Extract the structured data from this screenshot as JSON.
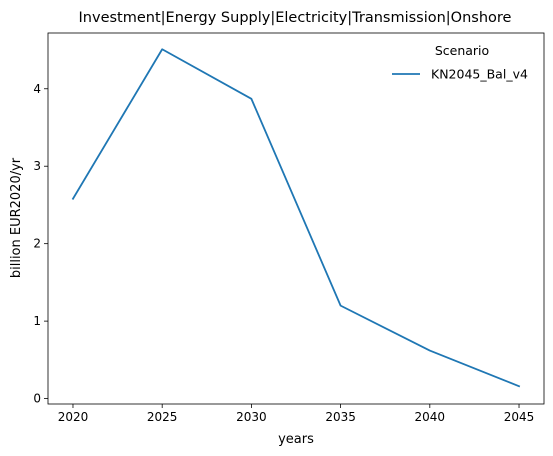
{
  "chart_data": {
    "type": "line",
    "title": "Investment|Energy Supply|Electricity|Transmission|Onshore",
    "xlabel": "years",
    "ylabel": "billion EUR2020/yr",
    "x": [
      2020,
      2025,
      2030,
      2035,
      2040,
      2045
    ],
    "xlim": [
      2018.6,
      2046.4
    ],
    "ylim": [
      -0.07,
      4.72
    ],
    "xticks": [
      2020,
      2025,
      2030,
      2035,
      2040,
      2045
    ],
    "yticks": [
      0,
      1,
      2,
      3,
      4
    ],
    "grid": false,
    "legend": {
      "title": "Scenario",
      "placement": "top-right"
    },
    "series": [
      {
        "name": "KN2045_Bal_v4",
        "color": "#1f77b4",
        "values": [
          2.58,
          4.51,
          3.87,
          1.2,
          0.62,
          0.16
        ]
      }
    ]
  }
}
